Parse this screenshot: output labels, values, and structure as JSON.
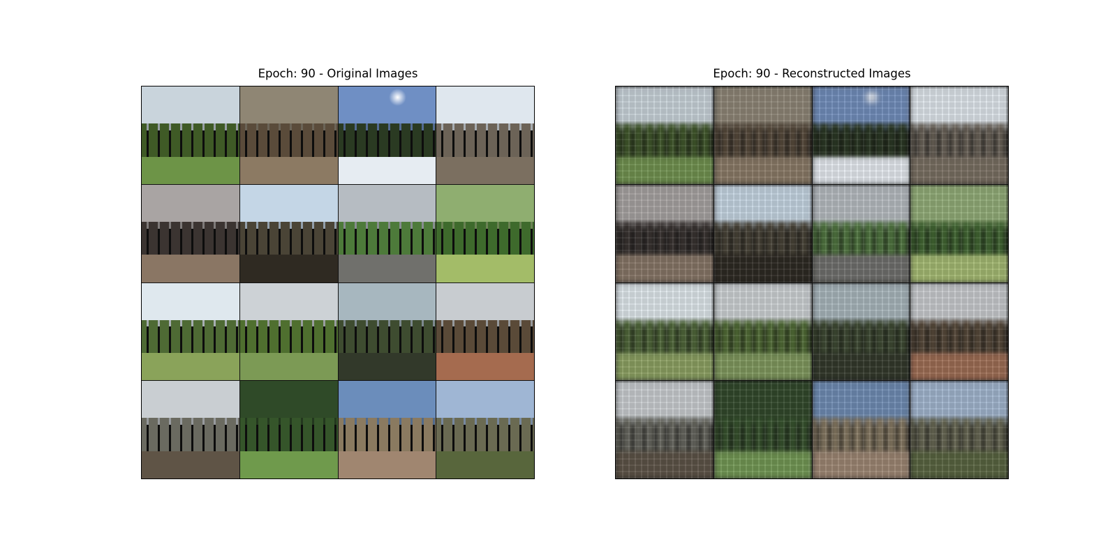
{
  "left_panel": {
    "title": "Epoch: 90 - Original Images"
  },
  "right_panel": {
    "title": "Epoch: 90 - Reconstructed Images"
  },
  "tiles": [
    {
      "sky": "#c9d4dc",
      "mid": "#3f5a26",
      "ground": "#6d9447",
      "sun": ""
    },
    {
      "sky": "#8f8674",
      "mid": "#5a4b3a",
      "ground": "#8c7a63",
      "sun": ""
    },
    {
      "sky": "#6f8fc4",
      "mid": "#2a3a22",
      "ground": "#e6ecf2",
      "sun": "#ffffff"
    },
    {
      "sky": "#dfe7ee",
      "mid": "#6c6357",
      "ground": "#7b6f60",
      "sun": ""
    },
    {
      "sky": "#a9a4a3",
      "mid": "#3b3431",
      "ground": "#8a7664",
      "sun": ""
    },
    {
      "sky": "#c4d6e6",
      "mid": "#4a4436",
      "ground": "#2f2a22",
      "sun": ""
    },
    {
      "sky": "#b6bcc2",
      "mid": "#4d7a3a",
      "ground": "#70706c",
      "sun": ""
    },
    {
      "sky": "#8fae70",
      "mid": "#3e6a2c",
      "ground": "#a3bc68",
      "sun": ""
    },
    {
      "sky": "#dfe8ee",
      "mid": "#4e6a34",
      "ground": "#8aa35a",
      "sun": ""
    },
    {
      "sky": "#cdd2d6",
      "mid": "#4f6f2f",
      "ground": "#7c9a55",
      "sun": ""
    },
    {
      "sky": "#a7b7bf",
      "mid": "#3e4c30",
      "ground": "#32392a",
      "sun": ""
    },
    {
      "sky": "#c8ccd0",
      "mid": "#5a4a38",
      "ground": "#a56b4f",
      "sun": ""
    },
    {
      "sky": "#c9ced2",
      "mid": "#6a6a60",
      "ground": "#5f5446",
      "sun": ""
    },
    {
      "sky": "#2f4a28",
      "mid": "#35552a",
      "ground": "#6f9a4c",
      "sun": ""
    },
    {
      "sky": "#6b8dbb",
      "mid": "#8a7a60",
      "ground": "#a08670",
      "sun": ""
    },
    {
      "sky": "#9fb6d4",
      "mid": "#6a6a52",
      "ground": "#58663c",
      "sun": ""
    }
  ]
}
